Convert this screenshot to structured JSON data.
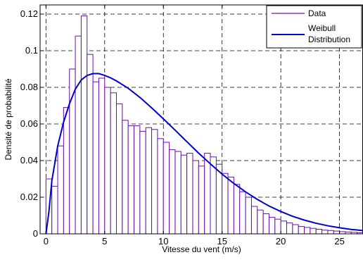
{
  "chart_data": {
    "type": "bar",
    "xlabel": "Vitesse du vent (m/s)",
    "ylabel": "Densité de probabilité",
    "xlim": [
      -0.5,
      27
    ],
    "ylim": [
      0,
      0.125
    ],
    "x_ticks": [
      0,
      5,
      10,
      15,
      20,
      25
    ],
    "y_ticks": [
      0,
      0.02,
      0.04,
      0.06,
      0.08,
      0.1,
      0.12
    ],
    "grid": true,
    "legend_position": "top-right",
    "bin_width": 0.5,
    "series": [
      {
        "name": "Data",
        "type": "histogram",
        "color": "#6a0dad",
        "bin_starts": [
          0,
          0.5,
          1,
          1.5,
          2,
          2.5,
          3,
          3.5,
          4,
          4.5,
          5,
          5.5,
          6,
          6.5,
          7,
          7.5,
          8,
          8.5,
          9,
          9.5,
          10,
          10.5,
          11,
          11.5,
          12,
          12.5,
          13,
          13.5,
          14,
          14.5,
          15,
          15.5,
          16,
          16.5,
          17,
          17.5,
          18,
          18.5,
          19,
          19.5,
          20,
          20.5,
          21,
          21.5,
          22,
          22.5,
          23,
          23.5,
          24,
          24.5,
          25,
          25.5,
          26,
          26.5
        ],
        "values": [
          0.03,
          0.026,
          0.048,
          0.069,
          0.09,
          0.108,
          0.119,
          0.098,
          0.083,
          0.085,
          0.08,
          0.077,
          0.071,
          0.062,
          0.059,
          0.059,
          0.056,
          0.058,
          0.057,
          0.052,
          0.05,
          0.046,
          0.045,
          0.043,
          0.044,
          0.04,
          0.037,
          0.044,
          0.042,
          0.038,
          0.033,
          0.031,
          0.027,
          0.023,
          0.02,
          0.015,
          0.013,
          0.011,
          0.009,
          0.008,
          0.007,
          0.006,
          0.005,
          0.004,
          0.0035,
          0.003,
          0.0025,
          0.002,
          0.0018,
          0.0015,
          0.0012,
          0.001,
          0.0008,
          0.0006
        ]
      },
      {
        "name": "Weibull Distribution",
        "type": "line",
        "color": "#0000cc",
        "x": [
          0,
          0.25,
          0.5,
          1,
          1.5,
          2,
          2.5,
          3,
          3.5,
          4,
          4.5,
          5,
          5.5,
          6,
          7,
          8,
          9,
          10,
          11,
          12,
          13,
          14,
          15,
          16,
          17,
          18,
          19,
          20,
          21,
          22,
          23,
          24,
          25,
          26,
          27
        ],
        "y": [
          0,
          0.012,
          0.029,
          0.048,
          0.061,
          0.071,
          0.079,
          0.084,
          0.0865,
          0.0875,
          0.0875,
          0.0865,
          0.0852,
          0.0835,
          0.0795,
          0.0745,
          0.0688,
          0.0628,
          0.0566,
          0.0503,
          0.0441,
          0.0382,
          0.0326,
          0.0275,
          0.0229,
          0.0188,
          0.0152,
          0.0122,
          0.0096,
          0.0075,
          0.0058,
          0.0044,
          0.0033,
          0.0024,
          0.0018
        ]
      }
    ],
    "legend": {
      "entries": [
        "Data",
        "Weibull",
        "Distribution"
      ]
    }
  }
}
